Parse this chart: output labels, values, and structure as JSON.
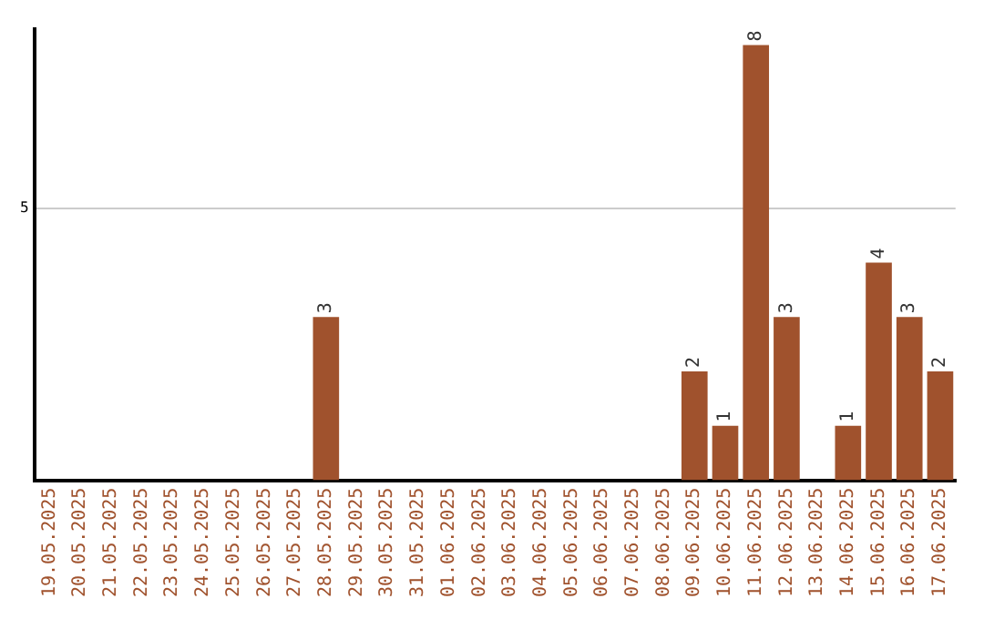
{
  "chart_data": {
    "type": "bar",
    "categories": [
      "19.05.2025",
      "20.05.2025",
      "21.05.2025",
      "22.05.2025",
      "23.05.2025",
      "24.05.2025",
      "25.05.2025",
      "26.05.2025",
      "27.05.2025",
      "28.05.2025",
      "29.05.2025",
      "30.05.2025",
      "31.05.2025",
      "01.06.2025",
      "02.06.2025",
      "03.06.2025",
      "04.06.2025",
      "05.06.2025",
      "06.06.2025",
      "07.06.2025",
      "08.06.2025",
      "09.06.2025",
      "10.06.2025",
      "11.06.2025",
      "12.06.2025",
      "13.06.2025",
      "14.06.2025",
      "15.06.2025",
      "16.06.2025",
      "17.06.2025"
    ],
    "values": [
      0,
      0,
      0,
      0,
      0,
      0,
      0,
      0,
      0,
      3,
      0,
      0,
      0,
      0,
      0,
      0,
      0,
      0,
      0,
      0,
      0,
      2,
      1,
      8,
      3,
      0,
      1,
      4,
      3,
      2
    ],
    "value_labels": [
      null,
      null,
      null,
      null,
      null,
      null,
      null,
      null,
      null,
      "3",
      null,
      null,
      null,
      null,
      null,
      null,
      null,
      null,
      null,
      null,
      null,
      "2",
      "1",
      "8",
      "3",
      null,
      "1",
      "4",
      "3",
      "2"
    ],
    "color": "#a0522d",
    "ylim": [
      0,
      8.3
    ],
    "yticks": [
      5
    ],
    "grid": "y"
  }
}
